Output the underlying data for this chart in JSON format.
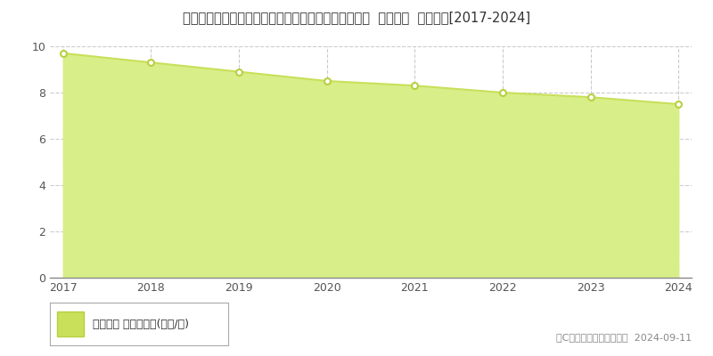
{
  "title": "福井県三方上中郡若狭町井ノ口３６号加福六７番９外  地価公示  地価推移[2017-2024]",
  "years": [
    2017,
    2018,
    2019,
    2020,
    2021,
    2022,
    2023,
    2024
  ],
  "values": [
    9.7,
    9.3,
    8.9,
    8.5,
    8.3,
    8.0,
    7.8,
    7.5
  ],
  "ylim": [
    0,
    10
  ],
  "yticks": [
    0,
    2,
    4,
    6,
    8,
    10
  ],
  "line_color": "#c8e05a",
  "fill_color": "#d8ee88",
  "marker_color": "#ffffff",
  "marker_edge_color": "#b8d040",
  "grid_color": "#cccccc",
  "bg_color": "#ffffff",
  "plot_bg_color": "#ffffff",
  "legend_label": "地価公示 平均坪単価(万円/坪)",
  "legend_marker_color": "#c8e05a",
  "copyright_text": "（C）土地価格ドットコム  2024-09-11",
  "title_fontsize": 10.5,
  "tick_fontsize": 9,
  "legend_fontsize": 9
}
